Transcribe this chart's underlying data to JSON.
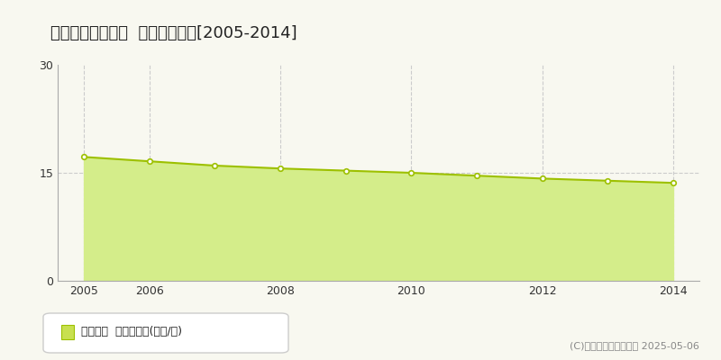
{
  "title": "南条郡南越前町糦  基準地価推移[2005-2014]",
  "years": [
    2005,
    2006,
    2007,
    2008,
    2009,
    2010,
    2011,
    2012,
    2013,
    2014
  ],
  "values": [
    17.2,
    16.6,
    16.0,
    15.6,
    15.3,
    15.0,
    14.6,
    14.2,
    13.9,
    13.6
  ],
  "ylim": [
    0,
    30
  ],
  "yticks": [
    0,
    15,
    30
  ],
  "xticks": [
    2005,
    2006,
    2008,
    2010,
    2012,
    2014
  ],
  "line_color": "#9dc000",
  "fill_color": "#d4ed8a",
  "marker_facecolor": "#ffffff",
  "marker_edgecolor": "#9dc000",
  "grid_color": "#cccccc",
  "background_color": "#f8f8f0",
  "plot_bg_color": "#f8f8f0",
  "legend_label": "基準地価  平均坪単価(万円/坪)",
  "legend_square_color": "#c8e050",
  "copyright_text": "(C)土地価格ドットコム 2025-05-06",
  "title_fontsize": 13,
  "tick_fontsize": 9,
  "legend_fontsize": 9,
  "copyright_fontsize": 8
}
